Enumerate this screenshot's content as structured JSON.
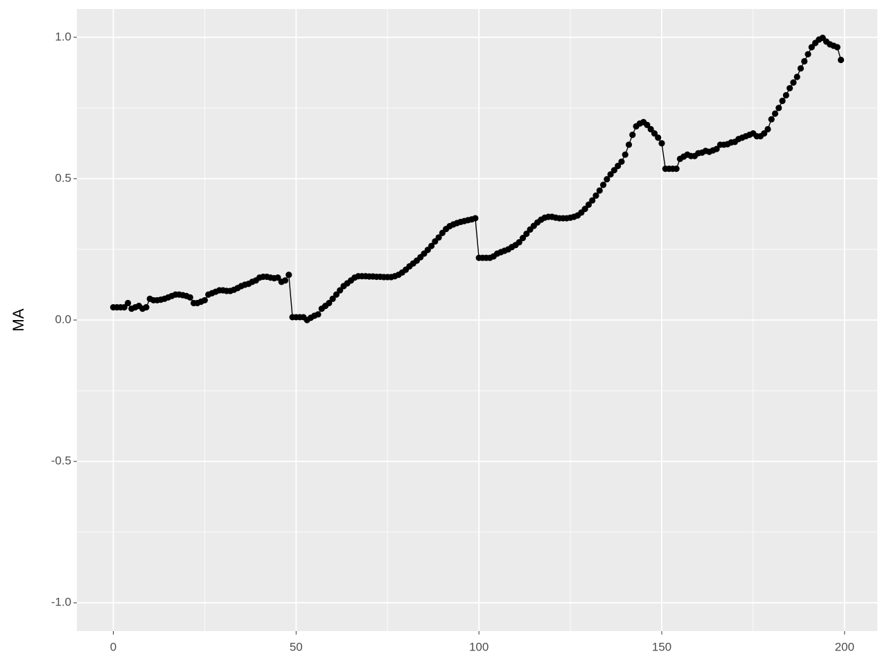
{
  "chart_data": {
    "type": "line",
    "y_label": "MA",
    "x": [
      0,
      1,
      2,
      3,
      4,
      5,
      6,
      7,
      8,
      9,
      10,
      11,
      12,
      13,
      14,
      15,
      16,
      17,
      18,
      19,
      20,
      21,
      22,
      23,
      24,
      25,
      26,
      27,
      28,
      29,
      30,
      31,
      32,
      33,
      34,
      35,
      36,
      37,
      38,
      39,
      40,
      41,
      42,
      43,
      44,
      45,
      46,
      47,
      48,
      49,
      50,
      51,
      52,
      53,
      54,
      55,
      56,
      57,
      58,
      59,
      60,
      61,
      62,
      63,
      64,
      65,
      66,
      67,
      68,
      69,
      70,
      71,
      72,
      73,
      74,
      75,
      76,
      77,
      78,
      79,
      80,
      81,
      82,
      83,
      84,
      85,
      86,
      87,
      88,
      89,
      90,
      91,
      92,
      93,
      94,
      95,
      96,
      97,
      98,
      99,
      100,
      101,
      102,
      103,
      104,
      105,
      106,
      107,
      108,
      109,
      110,
      111,
      112,
      113,
      114,
      115,
      116,
      117,
      118,
      119,
      120,
      121,
      122,
      123,
      124,
      125,
      126,
      127,
      128,
      129,
      130,
      131,
      132,
      133,
      134,
      135,
      136,
      137,
      138,
      139,
      140,
      141,
      142,
      143,
      144,
      145,
      146,
      147,
      148,
      149,
      150,
      151,
      152,
      153,
      154,
      155,
      156,
      157,
      158,
      159,
      160,
      161,
      162,
      163,
      164,
      165,
      166,
      167,
      168,
      169,
      170,
      171,
      172,
      173,
      174,
      175,
      176,
      177,
      178,
      179,
      180,
      181,
      182,
      183,
      184,
      185,
      186,
      187,
      188,
      189,
      190,
      191,
      192,
      193,
      194,
      195,
      196,
      197,
      198,
      199
    ],
    "series": [
      {
        "color": "#000000",
        "values": [
          0.045,
          0.045,
          0.045,
          0.045,
          0.06,
          0.04,
          0.045,
          0.05,
          0.04,
          0.045,
          0.075,
          0.07,
          0.07,
          0.072,
          0.075,
          0.08,
          0.085,
          0.09,
          0.09,
          0.088,
          0.085,
          0.08,
          0.06,
          0.06,
          0.065,
          0.07,
          0.09,
          0.095,
          0.1,
          0.105,
          0.105,
          0.103,
          0.103,
          0.107,
          0.113,
          0.12,
          0.125,
          0.128,
          0.135,
          0.14,
          0.15,
          0.153,
          0.153,
          0.15,
          0.148,
          0.15,
          0.135,
          0.14,
          0.16,
          0.01,
          0.01,
          0.01,
          0.01,
          0.0,
          0.008,
          0.015,
          0.02,
          0.04,
          0.05,
          0.06,
          0.075,
          0.09,
          0.105,
          0.12,
          0.13,
          0.14,
          0.15,
          0.155,
          0.155,
          0.155,
          0.154,
          0.154,
          0.153,
          0.153,
          0.152,
          0.152,
          0.152,
          0.155,
          0.16,
          0.168,
          0.178,
          0.19,
          0.2,
          0.21,
          0.222,
          0.235,
          0.248,
          0.262,
          0.278,
          0.292,
          0.308,
          0.322,
          0.332,
          0.338,
          0.343,
          0.347,
          0.35,
          0.353,
          0.356,
          0.36,
          0.22,
          0.22,
          0.22,
          0.22,
          0.225,
          0.235,
          0.24,
          0.245,
          0.25,
          0.258,
          0.265,
          0.275,
          0.29,
          0.305,
          0.32,
          0.333,
          0.345,
          0.355,
          0.362,
          0.365,
          0.365,
          0.362,
          0.36,
          0.36,
          0.36,
          0.362,
          0.365,
          0.37,
          0.38,
          0.393,
          0.408,
          0.423,
          0.44,
          0.458,
          0.478,
          0.498,
          0.515,
          0.53,
          0.545,
          0.56,
          0.585,
          0.62,
          0.655,
          0.685,
          0.695,
          0.7,
          0.69,
          0.675,
          0.66,
          0.645,
          0.625,
          0.535,
          0.535,
          0.535,
          0.535,
          0.57,
          0.578,
          0.585,
          0.58,
          0.58,
          0.59,
          0.592,
          0.598,
          0.595,
          0.6,
          0.605,
          0.62,
          0.62,
          0.622,
          0.628,
          0.63,
          0.64,
          0.645,
          0.65,
          0.655,
          0.66,
          0.65,
          0.65,
          0.66,
          0.675,
          0.71,
          0.73,
          0.75,
          0.775,
          0.795,
          0.82,
          0.84,
          0.86,
          0.89,
          0.915,
          0.94,
          0.965,
          0.98,
          0.992,
          0.998,
          0.985,
          0.975,
          0.97,
          0.965,
          0.92
        ]
      }
    ],
    "xlim": [
      -9.95,
      208.95
    ],
    "ylim": [
      -1.1,
      1.1
    ],
    "xticks": [
      0,
      50,
      100,
      150,
      200
    ],
    "yticks": [
      {
        "value": -1,
        "label": "-1.0"
      },
      -0.5,
      {
        "value": 0,
        "label": "0.0"
      },
      0.5,
      {
        "value": 1,
        "label": "1.0"
      }
    ],
    "x_minor_grid": [
      25,
      75,
      125,
      175
    ],
    "y_minor_grid": [
      -0.75,
      -0.25,
      0.25,
      0.75
    ],
    "grid": true,
    "markers": true
  }
}
